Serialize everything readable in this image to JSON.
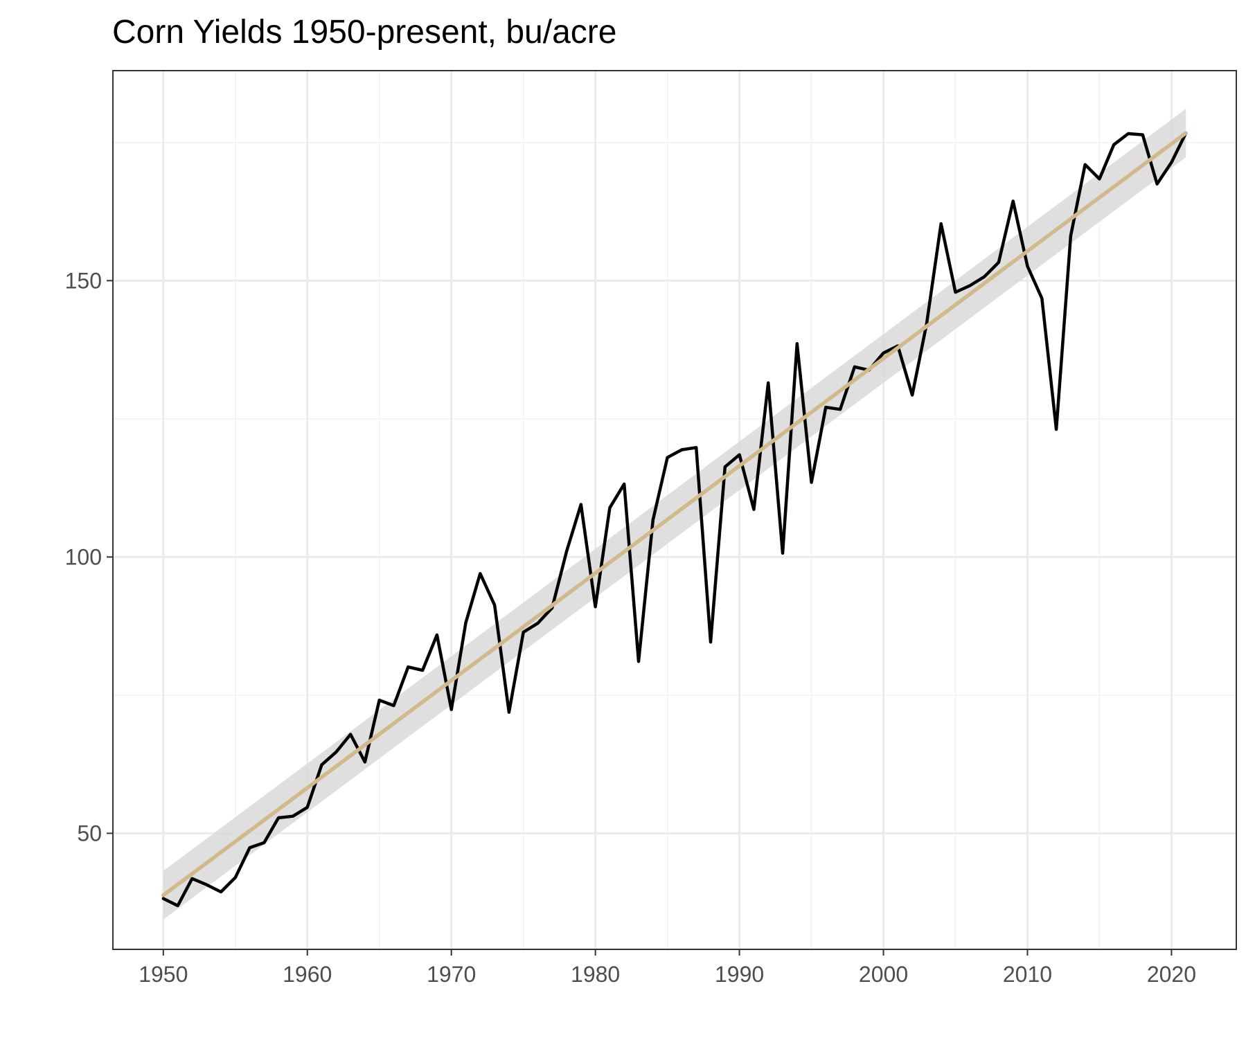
{
  "chart_data": {
    "type": "line",
    "title": "Corn Yields 1950-present, bu/acre",
    "xlabel": "",
    "ylabel": "",
    "xlim": [
      1946.5,
      2024.5
    ],
    "ylim": [
      29,
      188
    ],
    "x_ticks": [
      1950,
      1960,
      1970,
      1980,
      1990,
      2000,
      2010,
      2020
    ],
    "y_ticks": [
      50,
      100,
      150
    ],
    "x_tick_labels": [
      "1950",
      "1960",
      "1970",
      "1980",
      "1990",
      "2000",
      "2010",
      "2020"
    ],
    "y_tick_labels": [
      "50",
      "100",
      "150"
    ],
    "grid": true,
    "legend": "none",
    "series": [
      {
        "color": "#000000",
        "x": [
          1950,
          1951,
          1952,
          1953,
          1954,
          1955,
          1956,
          1957,
          1958,
          1959,
          1960,
          1961,
          1962,
          1963,
          1964,
          1965,
          1966,
          1967,
          1968,
          1969,
          1970,
          1971,
          1972,
          1973,
          1974,
          1975,
          1976,
          1977,
          1978,
          1979,
          1980,
          1981,
          1982,
          1983,
          1984,
          1985,
          1986,
          1987,
          1988,
          1989,
          1990,
          1991,
          1992,
          1993,
          1994,
          1995,
          1996,
          1997,
          1998,
          1999,
          2000,
          2001,
          2002,
          2003,
          2004,
          2005,
          2006,
          2007,
          2008,
          2009,
          2010,
          2011,
          2012,
          2013,
          2014,
          2015,
          2016,
          2017,
          2018,
          2019,
          2020,
          2021
        ],
        "values": [
          38.2,
          36.9,
          41.8,
          40.7,
          39.4,
          42.0,
          47.4,
          48.3,
          52.8,
          53.1,
          54.7,
          62.4,
          64.7,
          67.9,
          62.9,
          74.1,
          73.1,
          80.1,
          79.5,
          85.9,
          72.4,
          88.1,
          97.0,
          91.3,
          71.9,
          86.4,
          88.0,
          90.8,
          101.0,
          109.5,
          91.0,
          108.9,
          113.2,
          81.1,
          106.7,
          118.0,
          119.4,
          119.8,
          84.6,
          116.3,
          118.5,
          108.6,
          131.5,
          100.7,
          138.6,
          113.5,
          127.1,
          126.7,
          134.4,
          133.8,
          136.9,
          138.2,
          129.3,
          142.2,
          160.3,
          147.9,
          149.1,
          150.7,
          153.3,
          164.4,
          152.6,
          146.8,
          123.1,
          158.1,
          171.0,
          168.4,
          174.6,
          176.6,
          176.4,
          167.5,
          171.4,
          176.7
        ]
      }
    ],
    "trend": {
      "color": "#d2b98a",
      "band_color": "#d9d9d9",
      "x": [
        1950,
        2021
      ],
      "values": [
        38.8,
        176.7
      ],
      "band_halfwidth": [
        4.4,
        4.4
      ]
    }
  }
}
